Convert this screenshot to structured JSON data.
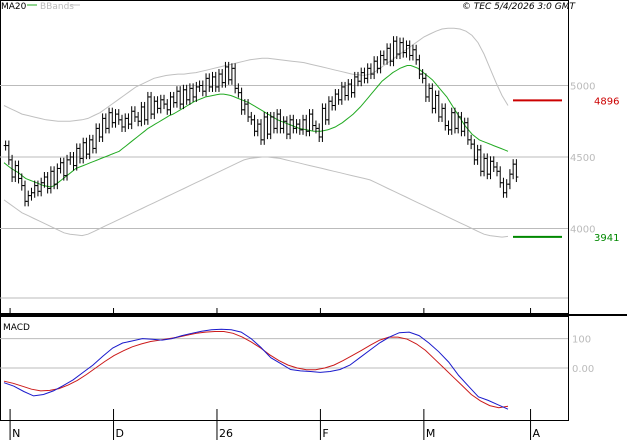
{
  "header": {
    "ma_label": "MA20",
    "bbands_label": "BBands",
    "copyright": "© TEC 5/4/2026 3:0 GMT"
  },
  "macd_panel": {
    "label": "MACD"
  },
  "colors": {
    "price_bars": "#000000",
    "ma20": "#22aa22",
    "bbands": "#c0c0c0",
    "resistance": "#cc0000",
    "support": "#008800",
    "macd_line": "#1a1acc",
    "signal_line": "#cc1a1a",
    "grid": "#bbbbbb",
    "axis_text": "#bbbbbb"
  },
  "chart_data": [
    {
      "type": "ohlc",
      "title": "",
      "y_ticks": [
        {
          "value": 5000,
          "label": "5000"
        },
        {
          "value": 4500,
          "label": "4500"
        },
        {
          "value": 4000,
          "label": "4000"
        }
      ],
      "ylim": [
        3500,
        5500
      ],
      "x_ticks": [
        {
          "index": 2,
          "label": "N"
        },
        {
          "index": 34,
          "label": "D"
        },
        {
          "index": 66,
          "label": "26"
        },
        {
          "index": 98,
          "label": "F"
        },
        {
          "index": 130,
          "label": "M"
        },
        {
          "index": 163,
          "label": "A"
        }
      ],
      "levels": [
        {
          "name": "resistance",
          "value": 4896,
          "label": "4896"
        },
        {
          "name": "support",
          "value": 3941,
          "label": "3941"
        }
      ],
      "close": [
        4580,
        4480,
        4360,
        4440,
        4350,
        4300,
        4190,
        4230,
        4250,
        4300,
        4260,
        4320,
        4360,
        4280,
        4400,
        4310,
        4420,
        4460,
        4370,
        4480,
        4500,
        4440,
        4560,
        4490,
        4600,
        4520,
        4620,
        4560,
        4700,
        4640,
        4770,
        4700,
        4810,
        4740,
        4800,
        4760,
        4710,
        4770,
        4730,
        4820,
        4780,
        4750,
        4850,
        4760,
        4920,
        4800,
        4890,
        4840,
        4900,
        4870,
        4830,
        4920,
        4880,
        4960,
        4870,
        4970,
        4900,
        4980,
        4920,
        4990,
        5000,
        4960,
        5050,
        4990,
        5060,
        4990,
        5080,
        5020,
        5130,
        5040,
        5120,
        4980,
        4950,
        4830,
        4870,
        4780,
        4760,
        4680,
        4730,
        4620,
        4780,
        4660,
        4780,
        4700,
        4800,
        4700,
        4750,
        4660,
        4760,
        4700,
        4730,
        4690,
        4760,
        4680,
        4800,
        4720,
        4700,
        4640,
        4840,
        4760,
        4890,
        4860,
        4940,
        4900,
        4990,
        4930,
        5010,
        4950,
        5060,
        5030,
        5090,
        5050,
        5120,
        5080,
        5170,
        5120,
        5210,
        5180,
        5260,
        5170,
        5310,
        5220,
        5300,
        5230,
        5280,
        5210,
        5250,
        5180,
        5080,
        5050,
        4920,
        4980,
        4840,
        4930,
        4780,
        4840,
        4720,
        4690,
        4810,
        4700,
        4780,
        4680,
        4740,
        4620,
        4590,
        4480,
        4550,
        4400,
        4490,
        4380,
        4470,
        4430,
        4400,
        4320,
        4250,
        4310,
        4380,
        4450,
        4360
      ],
      "ma20": [
        4460,
        4440,
        4420,
        4405,
        4390,
        4370,
        4350,
        4340,
        4330,
        4320,
        4310,
        4300,
        4295,
        4290,
        4300,
        4320,
        4340,
        4360,
        4380,
        4400,
        4420,
        4430,
        4440,
        4450,
        4460,
        4470,
        4480,
        4490,
        4500,
        4510,
        4520,
        4530,
        4540,
        4560,
        4580,
        4600,
        4620,
        4640,
        4660,
        4680,
        4700,
        4715,
        4730,
        4745,
        4760,
        4775,
        4790,
        4800,
        4815,
        4830,
        4845,
        4860,
        4875,
        4890,
        4900,
        4910,
        4920,
        4925,
        4930,
        4935,
        4940,
        4940,
        4935,
        4930,
        4920,
        4910,
        4900,
        4890,
        4880,
        4865,
        4850,
        4835,
        4820,
        4805,
        4790,
        4775,
        4760,
        4750,
        4740,
        4730,
        4720,
        4710,
        4700,
        4695,
        4690,
        4685,
        4680,
        4680,
        4680,
        4685,
        4690,
        4700,
        4710,
        4725,
        4740,
        4760,
        4780,
        4800,
        4825,
        4850,
        4880,
        4910,
        4940,
        4970,
        5000,
        5030,
        5050,
        5070,
        5090,
        5105,
        5120,
        5130,
        5140,
        5140,
        5130,
        5120,
        5100,
        5080,
        5060,
        5040,
        5010,
        4980,
        4950,
        4920,
        4880,
        4840,
        4800,
        4760,
        4720,
        4690,
        4660,
        4640,
        4620,
        4610,
        4600,
        4590,
        4580,
        4570,
        4560,
        4550,
        4540
      ],
      "bb_upper": [
        4860,
        4840,
        4820,
        4800,
        4790,
        4780,
        4770,
        4760,
        4755,
        4750,
        4750,
        4750,
        4755,
        4760,
        4770,
        4790,
        4810,
        4840,
        4870,
        4900,
        4930,
        4960,
        4990,
        5010,
        5030,
        5050,
        5060,
        5070,
        5075,
        5080,
        5080,
        5085,
        5090,
        5100,
        5110,
        5120,
        5130,
        5140,
        5150,
        5160,
        5170,
        5180,
        5185,
        5190,
        5190,
        5185,
        5180,
        5175,
        5170,
        5165,
        5160,
        5150,
        5140,
        5130,
        5120,
        5110,
        5100,
        5090,
        5080,
        5075,
        5070,
        5080,
        5100,
        5130,
        5160,
        5190,
        5220,
        5250,
        5280,
        5310,
        5340,
        5360,
        5380,
        5395,
        5400,
        5400,
        5395,
        5380,
        5350,
        5300,
        5220,
        5120,
        5020,
        4930,
        4860
      ],
      "bb_lower": [
        4200,
        4170,
        4140,
        4110,
        4090,
        4070,
        4050,
        4030,
        4010,
        3990,
        3970,
        3960,
        3955,
        3950,
        3960,
        3980,
        4000,
        4020,
        4040,
        4060,
        4080,
        4100,
        4120,
        4140,
        4160,
        4180,
        4200,
        4220,
        4240,
        4260,
        4280,
        4300,
        4320,
        4340,
        4360,
        4380,
        4400,
        4420,
        4440,
        4460,
        4480,
        4490,
        4495,
        4500,
        4500,
        4495,
        4490,
        4480,
        4470,
        4460,
        4450,
        4440,
        4430,
        4420,
        4410,
        4400,
        4390,
        4380,
        4370,
        4360,
        4350,
        4340,
        4320,
        4300,
        4280,
        4260,
        4240,
        4220,
        4200,
        4180,
        4160,
        4140,
        4120,
        4100,
        4080,
        4060,
        4040,
        4020,
        4000,
        3980,
        3960,
        3950,
        3945,
        3940,
        3945
      ],
      "macd": {
        "ylim": [
          -170,
          170
        ],
        "y_ticks": [
          {
            "value": 100,
            "label": "100"
          },
          {
            "value": 0,
            "label": "0.00"
          }
        ],
        "macd_line": [
          -50,
          -62,
          -80,
          -95,
          -90,
          -78,
          -60,
          -40,
          -15,
          10,
          40,
          68,
          85,
          92,
          100,
          98,
          95,
          100,
          110,
          118,
          125,
          130,
          132,
          130,
          122,
          100,
          70,
          35,
          15,
          -5,
          -10,
          -12,
          -15,
          -12,
          -5,
          10,
          35,
          60,
          85,
          105,
          120,
          122,
          110,
          85,
          55,
          20,
          -25,
          -62,
          -98,
          -110,
          -125,
          -140
        ],
        "signal_line": [
          -45,
          -52,
          -62,
          -72,
          -78,
          -76,
          -70,
          -58,
          -42,
          -22,
          0,
          22,
          42,
          58,
          72,
          82,
          90,
          95,
          100,
          105,
          112,
          118,
          122,
          124,
          124,
          118,
          105,
          88,
          68,
          45,
          25,
          10,
          0,
          -6,
          -6,
          0,
          10,
          25,
          42,
          60,
          78,
          95,
          105,
          105,
          98,
          82,
          60,
          30,
          0,
          -30,
          -60,
          -90,
          -112,
          -128,
          -135,
          -130
        ]
      },
      "macd_x_ticks": [
        {
          "index": 0,
          "label": "N"
        },
        {
          "index": 34,
          "label": "D"
        },
        {
          "index": 66,
          "label": "26"
        },
        {
          "index": 98,
          "label": "F"
        },
        {
          "index": 130,
          "label": "M"
        },
        {
          "index": 163,
          "label": "A"
        }
      ]
    }
  ]
}
